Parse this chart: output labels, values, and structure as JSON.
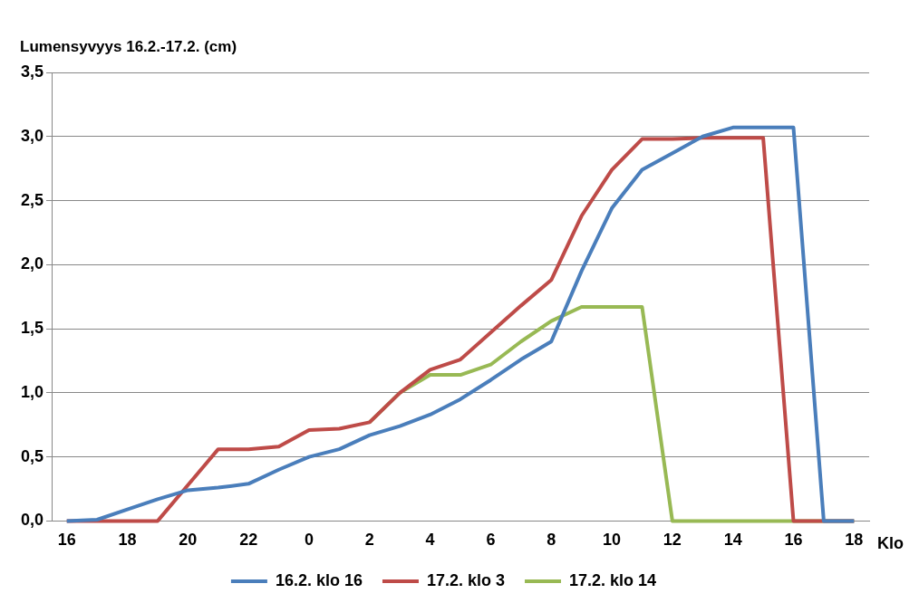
{
  "chart_data": {
    "type": "line",
    "ylabel": "Lumensyvyys 16.2.-17.2. (cm)",
    "xlabel": "Klo",
    "categories": [
      "16",
      null,
      "18",
      null,
      "20",
      null,
      "22",
      null,
      "0",
      null,
      "2",
      null,
      "4",
      null,
      "6",
      null,
      "8",
      null,
      "10",
      null,
      "12",
      null,
      "14",
      null,
      "16",
      null,
      "18"
    ],
    "ylim": [
      0,
      3.5
    ],
    "yticks": [
      {
        "value": 0,
        "label": "0,0"
      },
      {
        "value": 0.5,
        "label": "0,5"
      },
      {
        "value": 1,
        "label": "1,0"
      },
      {
        "value": 1.5,
        "label": "1,5"
      },
      {
        "value": 2,
        "label": "2,0"
      },
      {
        "value": 2.5,
        "label": "2,5"
      },
      {
        "value": 3,
        "label": "3,0"
      },
      {
        "value": 3.5,
        "label": "3,5"
      }
    ],
    "grid": "y",
    "legend": "bottom",
    "marker": "none",
    "line_style": "solid",
    "series": [
      {
        "name": "16.2. klo 16",
        "color": "#4a7ebb",
        "values": [
          0,
          0.01,
          0.09,
          0.17,
          0.24,
          0.26,
          0.29,
          0.4,
          0.5,
          0.56,
          0.67,
          0.74,
          0.83,
          0.95,
          1.1,
          1.26,
          1.4,
          1.95,
          2.44,
          2.74,
          2.87,
          3.0,
          3.07,
          3.07,
          3.07,
          0,
          0
        ]
      },
      {
        "name": "17.2. klo 3",
        "color": "#be4b48",
        "values": [
          0,
          0,
          0,
          0,
          0.28,
          0.56,
          0.56,
          0.58,
          0.71,
          0.72,
          0.77,
          1.0,
          1.18,
          1.26,
          1.47,
          1.68,
          1.88,
          2.38,
          2.74,
          2.98,
          2.98,
          2.99,
          2.99,
          2.99,
          0,
          0,
          0
        ]
      },
      {
        "name": "17.2. klo 14",
        "color": "#98b954",
        "values": [
          null,
          null,
          null,
          null,
          null,
          null,
          null,
          null,
          null,
          null,
          0.77,
          1.0,
          1.14,
          1.14,
          1.22,
          1.4,
          1.56,
          1.67,
          1.67,
          1.67,
          0,
          0,
          0,
          0,
          0,
          0,
          0
        ]
      }
    ]
  }
}
